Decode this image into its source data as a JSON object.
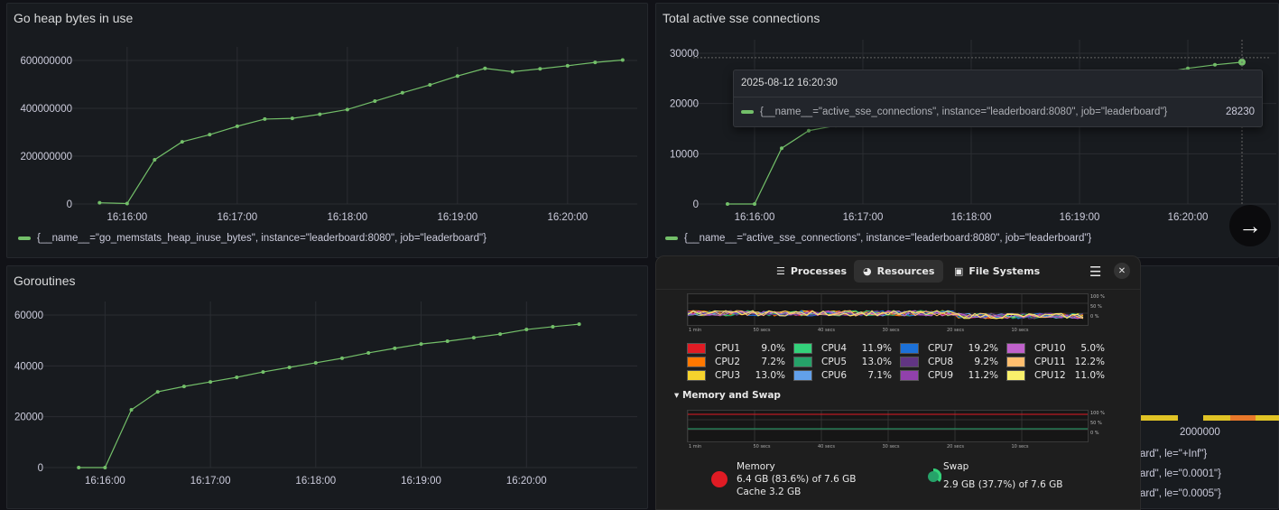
{
  "panels": {
    "heap": {
      "title": "Go heap bytes in use",
      "legend": "{__name__=\"go_memstats_heap_inuse_bytes\", instance=\"leaderboard:8080\", job=\"leaderboard\"}"
    },
    "sse": {
      "title": "Total active sse connections",
      "legend": "{__name__=\"active_sse_connections\", instance=\"leaderboard:8080\", job=\"leaderboard\"}"
    },
    "goroutines": {
      "title": "Goroutines"
    },
    "histogram": {
      "x_tick": "2000000",
      "legend_rows": [
        "ard\", le=\"+Inf\"}",
        "ard\", le=\"0.0001\"}",
        "ard\", le=\"0.0005\"}"
      ]
    }
  },
  "tooltip": {
    "time": "2025-08-12 16:20:30",
    "label": "{__name__=\"active_sse_connections\", instance=\"leaderboard:8080\", job=\"leaderboard\"}",
    "value": "28230"
  },
  "next_button": {
    "icon": "arrow-right-icon"
  },
  "series_color": "#73bf69",
  "chart_data": [
    {
      "type": "line",
      "title": "Go heap bytes in use",
      "panel": "heap",
      "x": [
        "16:15:45",
        "16:16:00",
        "16:16:15",
        "16:16:30",
        "16:16:45",
        "16:17:00",
        "16:17:15",
        "16:17:30",
        "16:17:45",
        "16:18:00",
        "16:18:15",
        "16:18:30",
        "16:18:45",
        "16:19:00",
        "16:19:15",
        "16:19:30",
        "16:19:45",
        "16:20:00",
        "16:20:15",
        "16:20:30"
      ],
      "values": [
        5000000,
        2000000,
        185000000,
        260000000,
        290000000,
        325000000,
        355000000,
        358000000,
        375000000,
        395000000,
        430000000,
        465000000,
        498000000,
        535000000,
        567000000,
        553000000,
        565000000,
        578000000,
        592000000,
        602000000
      ],
      "xlim": [
        "16:15:35",
        "16:20:35"
      ],
      "ylim": [
        0,
        600000000
      ],
      "xticks": [
        "16:16:00",
        "16:17:00",
        "16:18:00",
        "16:19:00",
        "16:20:00"
      ],
      "yticks": [
        0,
        200000000,
        400000000,
        600000000
      ],
      "grid": true,
      "legend": "bottom"
    },
    {
      "type": "line",
      "title": "Total active sse connections",
      "panel": "sse",
      "x": [
        "16:15:45",
        "16:16:00",
        "16:16:15",
        "16:16:30",
        "16:16:45",
        "16:17:00",
        "16:17:15",
        "16:17:30",
        "16:17:45",
        "16:18:00",
        "16:18:15",
        "16:18:30",
        "16:18:45",
        "16:19:00",
        "16:19:15",
        "16:19:30",
        "16:19:45",
        "16:20:00",
        "16:20:15",
        "16:20:30"
      ],
      "values": [
        0,
        0,
        11100,
        14600,
        15600,
        16500,
        17400,
        18300,
        19100,
        20000,
        20900,
        21800,
        22600,
        23500,
        24400,
        25300,
        26100,
        27000,
        27700,
        28230
      ],
      "xlim": [
        "16:15:31",
        "16:20:46"
      ],
      "ylim": [
        0,
        30000
      ],
      "xticks": [
        "16:16:00",
        "16:17:00",
        "16:18:00",
        "16:19:00",
        "16:20:00"
      ],
      "yticks": [
        0,
        10000,
        20000,
        30000
      ],
      "grid": true,
      "legend": "bottom"
    },
    {
      "type": "line",
      "title": "Goroutines",
      "panel": "goroutines",
      "x": [
        "16:15:45",
        "16:16:00",
        "16:16:15",
        "16:16:30",
        "16:16:45",
        "16:17:00",
        "16:17:15",
        "16:17:30",
        "16:17:45",
        "16:18:00",
        "16:18:15",
        "16:18:30",
        "16:18:45",
        "16:19:00",
        "16:19:15",
        "16:19:30",
        "16:19:45",
        "16:20:00",
        "16:20:15",
        "16:20:30"
      ],
      "values": [
        0,
        0,
        22700,
        29800,
        31900,
        33700,
        35500,
        37600,
        39400,
        41200,
        43000,
        45100,
        46900,
        48600,
        49700,
        51100,
        52500,
        54300,
        55400,
        56400
      ],
      "xlim": [
        "16:15:30",
        "16:21:00"
      ],
      "ylim": [
        0,
        60000
      ],
      "xticks": [
        "16:16:00",
        "16:17:00",
        "16:18:00",
        "16:19:00",
        "16:20:00"
      ],
      "yticks": [
        0,
        20000,
        40000,
        60000
      ],
      "grid": true
    }
  ],
  "system_monitor": {
    "tabs": [
      {
        "label": "Processes",
        "icon": "list-icon"
      },
      {
        "label": "Resources",
        "icon": "gauge-icon",
        "active": true
      },
      {
        "label": "File Systems",
        "icon": "disk-icon"
      }
    ],
    "graph_pct_labels": [
      "100 %",
      "50 %",
      "0 %"
    ],
    "graph_time_labels": [
      "1 min",
      "50 secs",
      "40 secs",
      "30 secs",
      "20 secs",
      "10 secs"
    ],
    "cpus": [
      {
        "name": "CPU1",
        "value": "9.0%",
        "color": "#e01b24"
      },
      {
        "name": "CPU2",
        "value": "7.2%",
        "color": "#ff7800"
      },
      {
        "name": "CPU3",
        "value": "13.0%",
        "color": "#f6d32d"
      },
      {
        "name": "CPU4",
        "value": "11.9%",
        "color": "#33d17a"
      },
      {
        "name": "CPU5",
        "value": "13.0%",
        "color": "#26a269"
      },
      {
        "name": "CPU6",
        "value": "7.1%",
        "color": "#62a0ea"
      },
      {
        "name": "CPU7",
        "value": "19.2%",
        "color": "#1c71d8"
      },
      {
        "name": "CPU8",
        "value": "9.2%",
        "color": "#613583"
      },
      {
        "name": "CPU9",
        "value": "11.2%",
        "color": "#9141ac"
      },
      {
        "name": "CPU10",
        "value": "5.0%",
        "color": "#c061cb"
      },
      {
        "name": "CPU11",
        "value": "12.2%",
        "color": "#ffbe6f"
      },
      {
        "name": "CPU12",
        "value": "11.0%",
        "color": "#f9f06b"
      }
    ],
    "memory_section": "Memory and Swap",
    "memory": {
      "label": "Memory",
      "usage": "6.4 GB (83.6%) of 7.6 GB",
      "cache": "Cache 3.2 GB",
      "percent": 83.6,
      "color": "#e01b24"
    },
    "swap": {
      "label": "Swap",
      "usage": "2.9 GB (37.7%) of 7.6 GB",
      "percent": 37.7,
      "color": "#26a269"
    }
  }
}
